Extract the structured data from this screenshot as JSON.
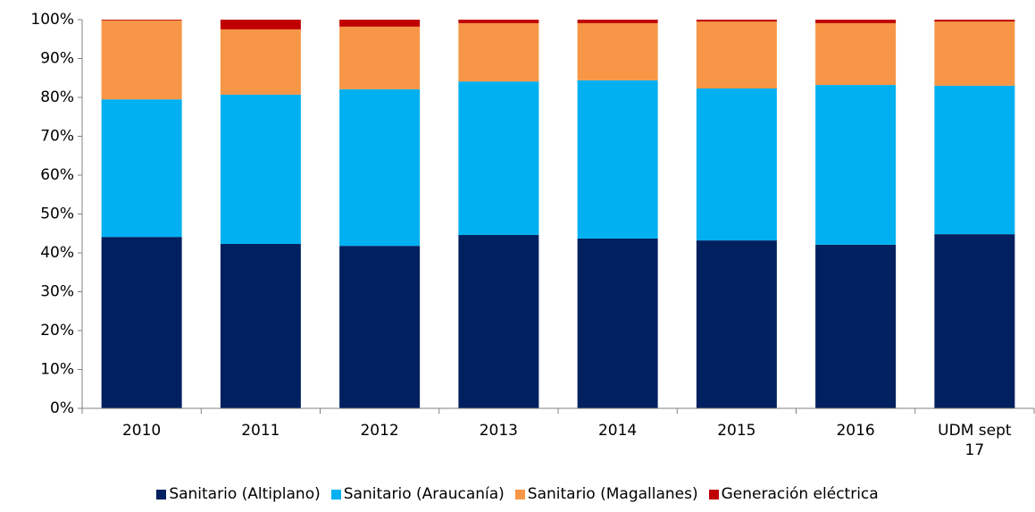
{
  "chart_data": {
    "type": "stacked_bar",
    "categories": [
      "2010",
      "2011",
      "2012",
      "2013",
      "2014",
      "2015",
      "2016",
      "UDM sept 17"
    ],
    "series": [
      {
        "name": "Sanitario (Altiplano)",
        "color": "#002060",
        "values": [
          44.1,
          42.3,
          41.8,
          44.6,
          43.7,
          43.2,
          42.1,
          44.8
        ]
      },
      {
        "name": "Sanitario (Araucanía)",
        "color": "#00b0f0",
        "values": [
          35.4,
          38.4,
          40.3,
          39.5,
          40.7,
          39.1,
          41.1,
          38.2
        ]
      },
      {
        "name": "Sanitario (Magallanes)",
        "color": "#f79646",
        "values": [
          20.3,
          16.8,
          16.1,
          15.0,
          14.7,
          17.2,
          15.9,
          16.5
        ]
      },
      {
        "name": "Generación eléctrica",
        "color": "#c00000",
        "values": [
          0.2,
          2.5,
          1.8,
          0.9,
          0.9,
          0.5,
          0.9,
          0.5
        ]
      }
    ],
    "ylim": [
      0,
      100
    ],
    "yticks": [
      {
        "value": 0,
        "label": "0%"
      },
      {
        "value": 10,
        "label": "10%"
      },
      {
        "value": 20,
        "label": "20%"
      },
      {
        "value": 30,
        "label": "30%"
      },
      {
        "value": 40,
        "label": "40%"
      },
      {
        "value": 50,
        "label": "50%"
      },
      {
        "value": 60,
        "label": "60%"
      },
      {
        "value": 70,
        "label": "70%"
      },
      {
        "value": 80,
        "label": "80%"
      },
      {
        "value": 90,
        "label": "90%"
      },
      {
        "value": 100,
        "label": "100%"
      }
    ],
    "legend": "bottom"
  }
}
